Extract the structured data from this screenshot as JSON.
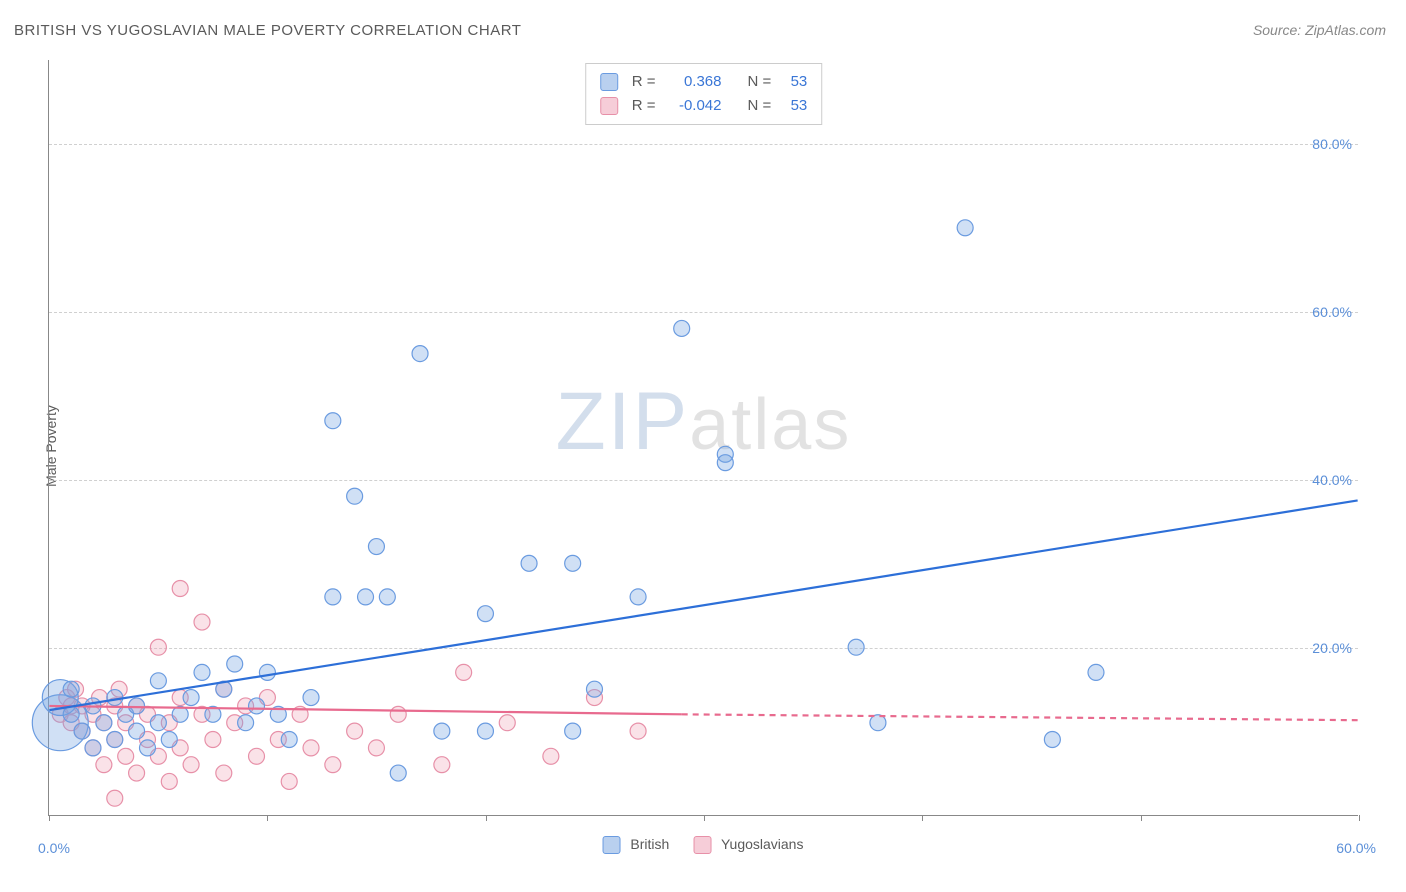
{
  "title": "BRITISH VS YUGOSLAVIAN MALE POVERTY CORRELATION CHART",
  "source": "Source: ZipAtlas.com",
  "y_axis_label": "Male Poverty",
  "watermark_zip": "ZIP",
  "watermark_rest": "atlas",
  "chart": {
    "type": "scatter",
    "xlim": [
      0,
      60
    ],
    "ylim": [
      0,
      90
    ],
    "y_ticks": [
      20,
      40,
      60,
      80
    ],
    "y_tick_labels": [
      "20.0%",
      "40.0%",
      "60.0%",
      "80.0%"
    ],
    "x_min_label": "0.0%",
    "x_max_label": "60.0%",
    "x_tick_positions": [
      0,
      10,
      20,
      30,
      40,
      50,
      60
    ],
    "grid_color": "#d0d0d0",
    "background_color": "#ffffff",
    "axis_color": "#888888",
    "tick_label_color": "#5b8fd8",
    "point_radius": 8,
    "point_stroke_width": 1.2,
    "trend_line_width": 2.2,
    "series": [
      {
        "name": "British",
        "fill": "rgba(120,165,225,0.35)",
        "stroke": "#6a9be0",
        "swatch_fill": "#b9d0ef",
        "swatch_border": "#6a9be0",
        "trend_color": "#2d6fd8",
        "trend": {
          "x1": 0,
          "y1": 12.5,
          "x2": 60,
          "y2": 37.5
        },
        "points": [
          {
            "x": 0.5,
            "y": 11,
            "r": 28
          },
          {
            "x": 0.5,
            "y": 14,
            "r": 18
          },
          {
            "x": 1,
            "y": 12
          },
          {
            "x": 1,
            "y": 15
          },
          {
            "x": 1.5,
            "y": 10
          },
          {
            "x": 2,
            "y": 13
          },
          {
            "x": 2,
            "y": 8
          },
          {
            "x": 2.5,
            "y": 11
          },
          {
            "x": 3,
            "y": 14
          },
          {
            "x": 3,
            "y": 9
          },
          {
            "x": 3.5,
            "y": 12
          },
          {
            "x": 4,
            "y": 10
          },
          {
            "x": 4,
            "y": 13
          },
          {
            "x": 4.5,
            "y": 8
          },
          {
            "x": 5,
            "y": 11
          },
          {
            "x": 5,
            "y": 16
          },
          {
            "x": 5.5,
            "y": 9
          },
          {
            "x": 6,
            "y": 12
          },
          {
            "x": 6.5,
            "y": 14
          },
          {
            "x": 7,
            "y": 17
          },
          {
            "x": 7.5,
            "y": 12
          },
          {
            "x": 8,
            "y": 15
          },
          {
            "x": 8.5,
            "y": 18
          },
          {
            "x": 9,
            "y": 11
          },
          {
            "x": 9.5,
            "y": 13
          },
          {
            "x": 10,
            "y": 17
          },
          {
            "x": 10.5,
            "y": 12
          },
          {
            "x": 11,
            "y": 9
          },
          {
            "x": 12,
            "y": 14
          },
          {
            "x": 13,
            "y": 26
          },
          {
            "x": 13,
            "y": 47
          },
          {
            "x": 14,
            "y": 38
          },
          {
            "x": 14.5,
            "y": 26
          },
          {
            "x": 15,
            "y": 32
          },
          {
            "x": 15.5,
            "y": 26
          },
          {
            "x": 16,
            "y": 5
          },
          {
            "x": 17,
            "y": 55
          },
          {
            "x": 18,
            "y": 10
          },
          {
            "x": 20,
            "y": 24
          },
          {
            "x": 20,
            "y": 10
          },
          {
            "x": 22,
            "y": 30
          },
          {
            "x": 24,
            "y": 10
          },
          {
            "x": 24,
            "y": 30
          },
          {
            "x": 25,
            "y": 15
          },
          {
            "x": 27,
            "y": 26
          },
          {
            "x": 29,
            "y": 58
          },
          {
            "x": 31,
            "y": 43
          },
          {
            "x": 31,
            "y": 42
          },
          {
            "x": 37,
            "y": 20
          },
          {
            "x": 38,
            "y": 11
          },
          {
            "x": 42,
            "y": 70
          },
          {
            "x": 46,
            "y": 9
          },
          {
            "x": 48,
            "y": 17
          }
        ],
        "r_value": "0.368",
        "n_value": "53"
      },
      {
        "name": "Yugoslavians",
        "fill": "rgba(240,160,180,0.30)",
        "stroke": "#e790a8",
        "swatch_fill": "#f6cdd8",
        "swatch_border": "#e790a8",
        "trend_color": "#e86a8e",
        "trend": {
          "x1": 0,
          "y1": 13.0,
          "x2": 29,
          "y2": 12.0
        },
        "trend_dashed": {
          "x1": 29,
          "y1": 12.0,
          "x2": 60,
          "y2": 11.3
        },
        "points": [
          {
            "x": 0.5,
            "y": 12
          },
          {
            "x": 0.8,
            "y": 14
          },
          {
            "x": 1,
            "y": 11
          },
          {
            "x": 1,
            "y": 13
          },
          {
            "x": 1.2,
            "y": 15
          },
          {
            "x": 1.5,
            "y": 10
          },
          {
            "x": 1.5,
            "y": 13
          },
          {
            "x": 2,
            "y": 12
          },
          {
            "x": 2,
            "y": 8
          },
          {
            "x": 2.3,
            "y": 14
          },
          {
            "x": 2.5,
            "y": 11
          },
          {
            "x": 2.5,
            "y": 6
          },
          {
            "x": 3,
            "y": 13
          },
          {
            "x": 3,
            "y": 9
          },
          {
            "x": 3,
            "y": 2
          },
          {
            "x": 3.2,
            "y": 15
          },
          {
            "x": 3.5,
            "y": 7
          },
          {
            "x": 3.5,
            "y": 11
          },
          {
            "x": 4,
            "y": 13
          },
          {
            "x": 4,
            "y": 5
          },
          {
            "x": 4.5,
            "y": 9
          },
          {
            "x": 4.5,
            "y": 12
          },
          {
            "x": 5,
            "y": 7
          },
          {
            "x": 5,
            "y": 20
          },
          {
            "x": 5.5,
            "y": 11
          },
          {
            "x": 5.5,
            "y": 4
          },
          {
            "x": 6,
            "y": 14
          },
          {
            "x": 6,
            "y": 8
          },
          {
            "x": 6,
            "y": 27
          },
          {
            "x": 6.5,
            "y": 6
          },
          {
            "x": 7,
            "y": 23
          },
          {
            "x": 7,
            "y": 12
          },
          {
            "x": 7.5,
            "y": 9
          },
          {
            "x": 8,
            "y": 15
          },
          {
            "x": 8,
            "y": 5
          },
          {
            "x": 8.5,
            "y": 11
          },
          {
            "x": 9,
            "y": 13
          },
          {
            "x": 9.5,
            "y": 7
          },
          {
            "x": 10,
            "y": 14
          },
          {
            "x": 10.5,
            "y": 9
          },
          {
            "x": 11,
            "y": 4
          },
          {
            "x": 11.5,
            "y": 12
          },
          {
            "x": 12,
            "y": 8
          },
          {
            "x": 13,
            "y": 6
          },
          {
            "x": 14,
            "y": 10
          },
          {
            "x": 15,
            "y": 8
          },
          {
            "x": 16,
            "y": 12
          },
          {
            "x": 18,
            "y": 6
          },
          {
            "x": 19,
            "y": 17
          },
          {
            "x": 21,
            "y": 11
          },
          {
            "x": 23,
            "y": 7
          },
          {
            "x": 25,
            "y": 14
          },
          {
            "x": 27,
            "y": 10
          }
        ],
        "r_value": "-0.042",
        "n_value": "53"
      }
    ]
  },
  "legend_labels": {
    "r_prefix": "R = ",
    "n_prefix": "N = "
  }
}
